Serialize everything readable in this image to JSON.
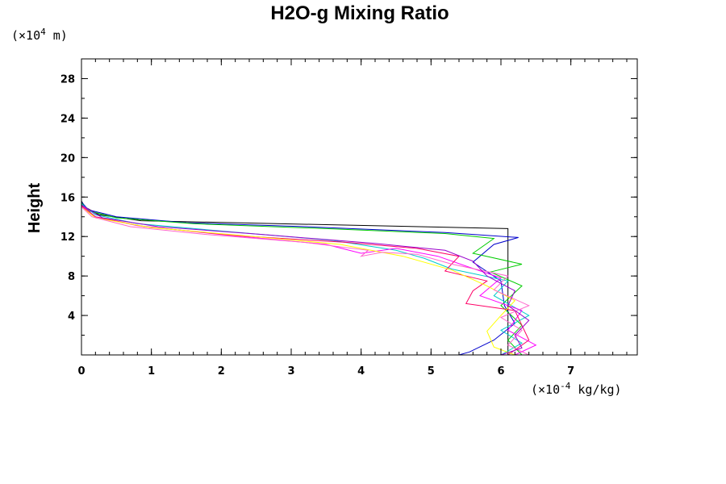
{
  "chart_data": {
    "type": "line",
    "title": "H2O-g Mixing Ratio",
    "ylabel": "Height",
    "y_unit": {
      "prefix": "(×10",
      "exp": "4",
      "suffix": " m)"
    },
    "x_unit": {
      "prefix": "(×10",
      "exp": "-4",
      "suffix": " kg/kg)"
    },
    "xlim": [
      0,
      7.95
    ],
    "ylim": [
      0,
      30
    ],
    "x_ticks": [
      0,
      1,
      2,
      3,
      4,
      5,
      6,
      7
    ],
    "y_ticks": [
      4,
      8,
      12,
      16,
      20,
      24,
      28
    ],
    "x_minor_step": 0.2,
    "y_minor_step": 2,
    "grid": false,
    "legend": "none",
    "series": [
      {
        "color": "#000000",
        "points": [
          [
            6.1,
            0
          ],
          [
            6.1,
            12.8
          ],
          [
            0.85,
            13.6
          ],
          [
            0.25,
            14.2
          ],
          [
            0.05,
            15.0
          ],
          [
            0,
            15.6
          ],
          [
            0,
            30
          ]
        ]
      },
      {
        "color": "#0000cc",
        "points": [
          [
            5.4,
            0
          ],
          [
            5.55,
            0.3
          ],
          [
            5.9,
            1.5
          ],
          [
            6.2,
            3.2
          ],
          [
            6.05,
            5
          ],
          [
            6.0,
            7.5
          ],
          [
            5.6,
            9.4
          ],
          [
            5.9,
            11.2
          ],
          [
            6.25,
            11.9
          ],
          [
            5.2,
            12.4
          ],
          [
            3.2,
            13.0
          ],
          [
            1.5,
            13.4
          ],
          [
            0.5,
            14.0
          ],
          [
            0.1,
            14.7
          ],
          [
            0,
            15.5
          ]
        ]
      },
      {
        "color": "#00cc00",
        "points": [
          [
            6.3,
            0
          ],
          [
            6.1,
            1.5
          ],
          [
            6.3,
            3
          ],
          [
            6.0,
            5
          ],
          [
            6.3,
            7
          ],
          [
            5.85,
            8.4
          ],
          [
            6.3,
            9.2
          ],
          [
            5.6,
            10.3
          ],
          [
            5.9,
            11.8
          ],
          [
            5.2,
            12.3
          ],
          [
            3.5,
            12.8
          ],
          [
            1.6,
            13.3
          ],
          [
            0.5,
            13.9
          ],
          [
            0.1,
            14.6
          ],
          [
            0,
            15.4
          ]
        ]
      },
      {
        "color": "#00cccc",
        "points": [
          [
            6.0,
            0
          ],
          [
            6.3,
            1.2
          ],
          [
            6.0,
            2.5
          ],
          [
            6.4,
            4
          ],
          [
            5.9,
            6
          ],
          [
            6.1,
            7.5
          ],
          [
            5.3,
            8.7
          ],
          [
            4.9,
            9.8
          ],
          [
            4.5,
            10.6
          ],
          [
            3.6,
            11.6
          ],
          [
            2.1,
            12.5
          ],
          [
            0.8,
            13.3
          ],
          [
            0.2,
            14.2
          ],
          [
            0,
            15.3
          ]
        ]
      },
      {
        "color": "#ff00ff",
        "points": [
          [
            6.2,
            0
          ],
          [
            6.5,
            1
          ],
          [
            6.1,
            2.5
          ],
          [
            6.3,
            4.5
          ],
          [
            5.7,
            6
          ],
          [
            6.0,
            7.8
          ],
          [
            5.5,
            9
          ],
          [
            5.1,
            10
          ],
          [
            4.5,
            10.8
          ],
          [
            4.0,
            10.3
          ],
          [
            3.5,
            11.2
          ],
          [
            2.0,
            12.2
          ],
          [
            0.8,
            13.1
          ],
          [
            0.2,
            14.0
          ],
          [
            0,
            15.2
          ]
        ]
      },
      {
        "color": "#ff0066",
        "points": [
          [
            6.1,
            0
          ],
          [
            6.4,
            1.5
          ],
          [
            6.3,
            3
          ],
          [
            6.2,
            4.5
          ],
          [
            5.5,
            5.2
          ],
          [
            5.6,
            6.5
          ],
          [
            5.8,
            7.5
          ],
          [
            5.2,
            8.5
          ],
          [
            5.4,
            10
          ],
          [
            4.8,
            10.8
          ],
          [
            3.8,
            11.4
          ],
          [
            2.2,
            12.1
          ],
          [
            0.9,
            13.0
          ],
          [
            0.2,
            14.0
          ],
          [
            0,
            15.1
          ]
        ]
      },
      {
        "color": "#ffff00",
        "points": [
          [
            6.2,
            0
          ],
          [
            5.9,
            0.8
          ],
          [
            5.8,
            2.4
          ],
          [
            6.0,
            4
          ],
          [
            6.2,
            5.5
          ],
          [
            5.8,
            7
          ],
          [
            5.3,
            8.6
          ],
          [
            4.6,
            10.0
          ],
          [
            3.7,
            11.2
          ],
          [
            2.3,
            12.1
          ],
          [
            1.0,
            12.9
          ],
          [
            0.2,
            13.9
          ],
          [
            0,
            15.0
          ]
        ]
      },
      {
        "color": "#ff66cc",
        "points": [
          [
            6.4,
            0
          ],
          [
            6.1,
            1
          ],
          [
            6.3,
            2.5
          ],
          [
            6.0,
            3.8
          ],
          [
            6.4,
            5
          ],
          [
            5.9,
            6.6
          ],
          [
            6.1,
            8
          ],
          [
            5.3,
            9.2
          ],
          [
            4.8,
            10.2
          ],
          [
            4.3,
            10.4
          ],
          [
            4.0,
            10.0
          ],
          [
            4.1,
            10.6
          ],
          [
            3.2,
            11.4
          ],
          [
            1.8,
            12.2
          ],
          [
            0.7,
            13.0
          ],
          [
            0.15,
            14.0
          ],
          [
            0,
            15.0
          ]
        ]
      },
      {
        "color": "#9900cc",
        "points": [
          [
            6.0,
            0
          ],
          [
            6.3,
            0.7
          ],
          [
            6.2,
            2
          ],
          [
            6.4,
            3.5
          ],
          [
            6.1,
            5
          ],
          [
            6.2,
            6.5
          ],
          [
            5.8,
            8
          ],
          [
            5.6,
            9.5
          ],
          [
            5.2,
            10.6
          ],
          [
            4.2,
            11.3
          ],
          [
            2.6,
            12.2
          ],
          [
            1.1,
            13.0
          ],
          [
            0.3,
            13.9
          ],
          [
            0,
            15.2
          ]
        ]
      }
    ]
  }
}
